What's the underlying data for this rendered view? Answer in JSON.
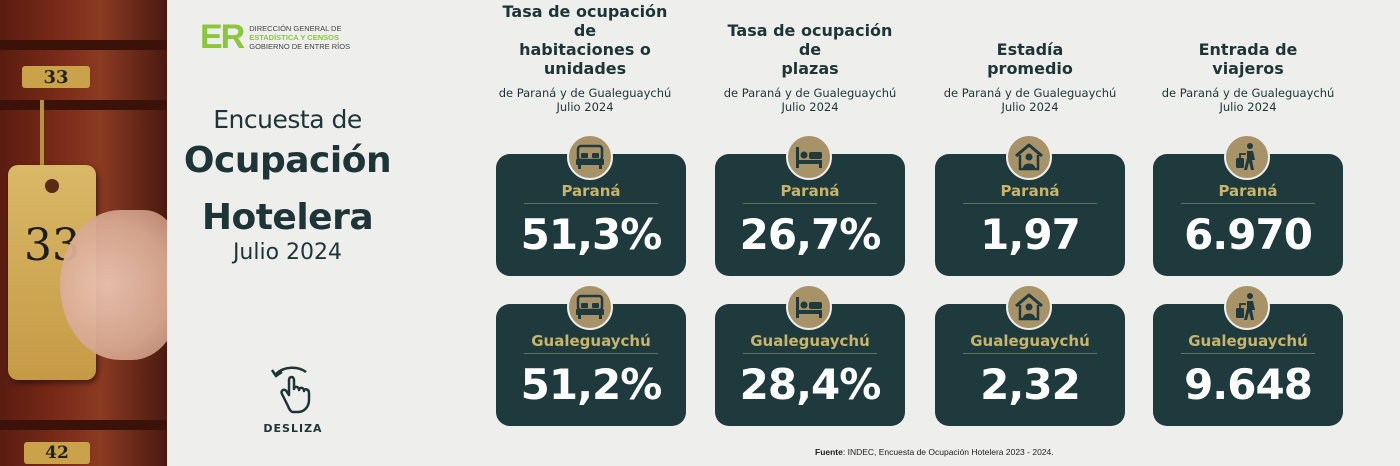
{
  "logo": {
    "mark": "ER",
    "line1": "DIRECCIÓN GENERAL DE",
    "line2": "ESTADÍSTICA Y CENSOS",
    "line3": "GOBIERNO DE ENTRE RÍOS"
  },
  "title": {
    "line1": "Encuesta de",
    "line2": "Ocupación",
    "line3": "Hotelera",
    "line4": "Julio 2024"
  },
  "photo": {
    "tag_top": "33",
    "tag_big": "33",
    "tag_bottom": "42"
  },
  "swipe": {
    "label": "DESLIZA"
  },
  "columns": [
    {
      "title1": "Tasa de ocupación de",
      "title2": "habitaciones o unidades",
      "subtitle1": "de Paraná y de Gualeguaychú",
      "subtitle2": "Julio 2024",
      "icon": "bed-room-icon",
      "cards": [
        {
          "city": "Paraná",
          "value": "51,3%"
        },
        {
          "city": "Gualeguaychú",
          "value": "51,2%"
        }
      ]
    },
    {
      "title1": "Tasa de ocupación de",
      "title2": "plazas",
      "subtitle1": "de Paraná y de Gualeguaychú",
      "subtitle2": "Julio 2024",
      "icon": "person-bed-icon",
      "cards": [
        {
          "city": "Paraná",
          "value": "26,7%"
        },
        {
          "city": "Gualeguaychú",
          "value": "28,4%"
        }
      ]
    },
    {
      "title1": "Estadía",
      "title2": "promedio",
      "subtitle1": "de Paraná y de Gualeguaychú",
      "subtitle2": "Julio 2024",
      "icon": "house-person-icon",
      "cards": [
        {
          "city": "Paraná",
          "value": "1,97"
        },
        {
          "city": "Gualeguaychú",
          "value": "2,32"
        }
      ]
    },
    {
      "title1": "Entrada de",
      "title2": "viajeros",
      "subtitle1": "de Paraná y de Gualeguaychú",
      "subtitle2": "Julio 2024",
      "icon": "traveler-luggage-icon",
      "cards": [
        {
          "city": "Paraná",
          "value": "6.970"
        },
        {
          "city": "Gualeguaychú",
          "value": "9.648"
        }
      ]
    }
  ],
  "source": {
    "label": "Fuente",
    "text": ": INDEC, Encuesta de Ocupación Hotelera 2023 - 2024."
  },
  "colors": {
    "card": "#1e3a3c",
    "accent_gold": "#c8b46a",
    "badge": "#a89368",
    "logo_green": "#8cc63f",
    "background": "#eeeeec"
  }
}
